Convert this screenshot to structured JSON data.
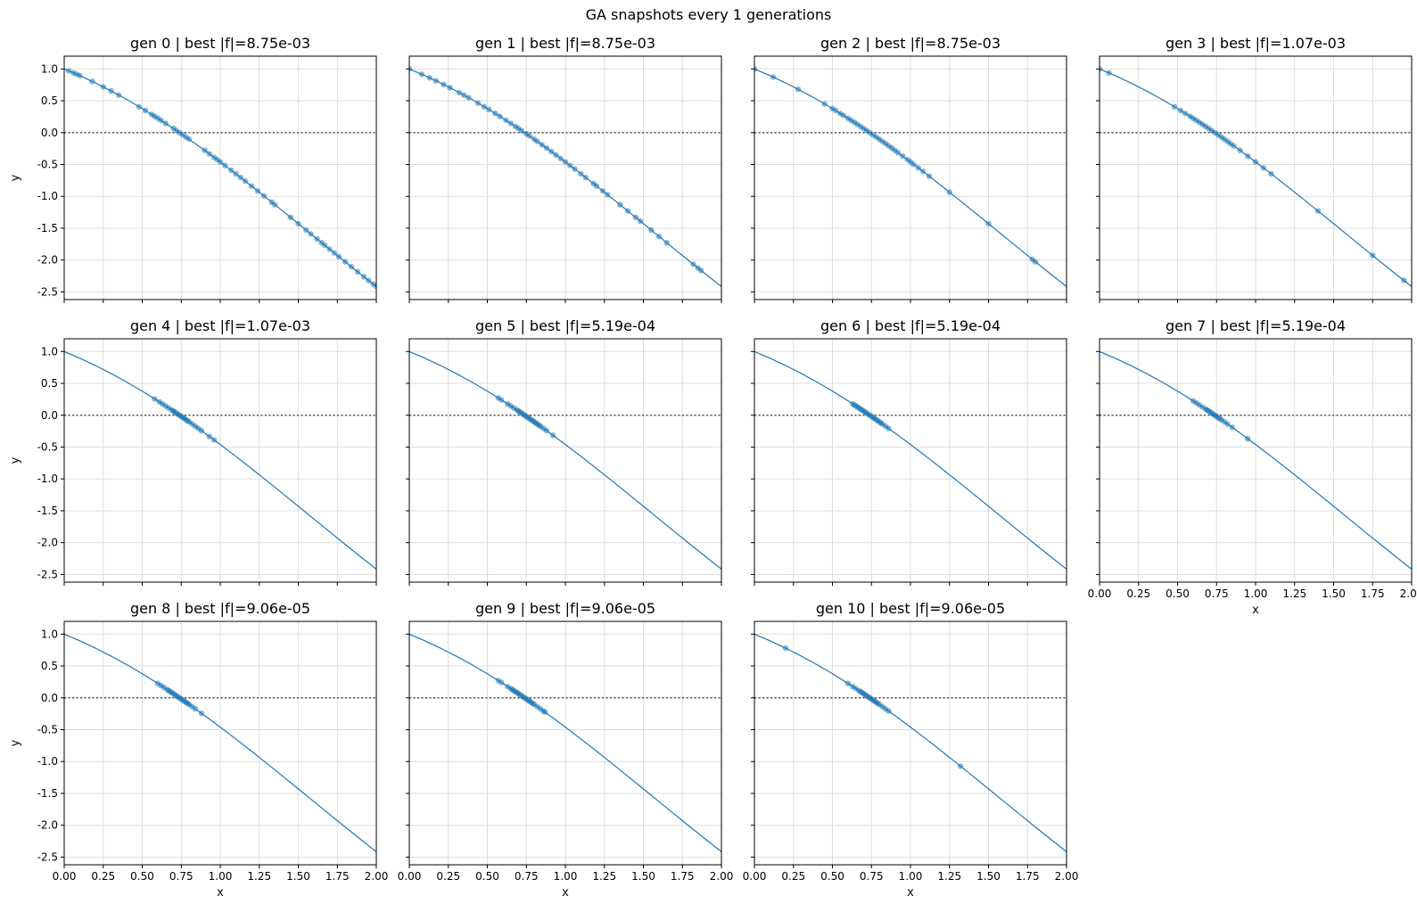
{
  "figure": {
    "suptitle": "GA snapshots every 1 generations"
  },
  "colors": {
    "curve": "#1f77b4",
    "points": "#1f77b4",
    "zero_line": "#555555",
    "grid": "#dddddd"
  },
  "chart_data": {
    "type": "scatter",
    "layout": "3x4 grid of subplots, shared x and y axes",
    "function_curve": {
      "x": [
        0.0,
        0.1,
        0.2,
        0.3,
        0.4,
        0.5,
        0.6,
        0.7,
        0.8,
        0.9,
        1.0,
        1.1,
        1.2,
        1.3,
        1.4,
        1.5,
        1.6,
        1.7,
        1.8,
        1.9,
        2.0
      ],
      "y": [
        1.0,
        0.895,
        0.78,
        0.655,
        0.521,
        0.378,
        0.225,
        0.065,
        -0.103,
        -0.278,
        -0.46,
        -0.646,
        -0.838,
        -1.033,
        -1.23,
        -1.429,
        -1.629,
        -1.829,
        -2.027,
        -2.223,
        -2.416
      ]
    },
    "zero_line_y": 0,
    "xlim": [
      0,
      2
    ],
    "ylim": [
      -2.62,
      1.2
    ],
    "xticks": [
      "0.00",
      "0.25",
      "0.50",
      "0.75",
      "1.00",
      "1.25",
      "1.50",
      "1.75",
      "2.00"
    ],
    "yticks": [
      "-2.5",
      "-2.0",
      "-1.5",
      "-1.0",
      "-0.5",
      "0.0",
      "0.5",
      "1.0"
    ],
    "xlabel": "x",
    "ylabel": "y",
    "grid": true,
    "panels": [
      {
        "title": "gen 0 | best |f|=8.75e-03",
        "points_x": [
          0.03,
          0.06,
          0.08,
          0.1,
          0.18,
          0.25,
          0.3,
          0.35,
          0.48,
          0.52,
          0.56,
          0.58,
          0.6,
          0.62,
          0.65,
          0.7,
          0.72,
          0.74,
          0.76,
          0.78,
          0.8,
          0.9,
          0.93,
          0.96,
          0.98,
          1.0,
          1.03,
          1.07,
          1.1,
          1.13,
          1.16,
          1.2,
          1.24,
          1.28,
          1.33,
          1.35,
          1.45,
          1.5,
          1.55,
          1.58,
          1.62,
          1.65,
          1.67,
          1.7,
          1.73,
          1.76,
          1.8,
          1.84,
          1.88,
          1.92,
          1.95,
          1.98,
          2.0
        ]
      },
      {
        "title": "gen 1 | best |f|=8.75e-03",
        "points_x": [
          0.0,
          0.08,
          0.13,
          0.17,
          0.22,
          0.26,
          0.32,
          0.35,
          0.38,
          0.44,
          0.48,
          0.51,
          0.55,
          0.58,
          0.62,
          0.65,
          0.68,
          0.7,
          0.72,
          0.75,
          0.77,
          0.8,
          0.82,
          0.85,
          0.88,
          0.91,
          0.94,
          0.97,
          1.0,
          1.03,
          1.06,
          1.1,
          1.13,
          1.18,
          1.2,
          1.24,
          1.27,
          1.35,
          1.4,
          1.45,
          1.48,
          1.55,
          1.6,
          1.65,
          1.82,
          1.85,
          1.87
        ]
      },
      {
        "title": "gen 2 | best |f|=8.75e-03",
        "points_x": [
          0.0,
          0.12,
          0.28,
          0.45,
          0.5,
          0.52,
          0.55,
          0.57,
          0.6,
          0.62,
          0.64,
          0.66,
          0.68,
          0.7,
          0.72,
          0.74,
          0.76,
          0.78,
          0.8,
          0.82,
          0.84,
          0.86,
          0.88,
          0.9,
          0.92,
          0.95,
          0.98,
          1.0,
          1.02,
          1.05,
          1.08,
          1.12,
          1.25,
          1.5,
          1.78,
          1.8
        ]
      },
      {
        "title": "gen 3 | best |f|=1.07e-03",
        "points_x": [
          0.0,
          0.06,
          0.48,
          0.52,
          0.55,
          0.58,
          0.6,
          0.62,
          0.64,
          0.66,
          0.68,
          0.7,
          0.72,
          0.74,
          0.76,
          0.78,
          0.8,
          0.82,
          0.84,
          0.86,
          0.9,
          0.95,
          1.0,
          1.05,
          1.1,
          1.4,
          1.75,
          1.95
        ]
      },
      {
        "title": "gen 4 | best |f|=1.07e-03",
        "points_x": [
          0.58,
          0.61,
          0.63,
          0.65,
          0.67,
          0.69,
          0.7,
          0.71,
          0.72,
          0.73,
          0.74,
          0.75,
          0.76,
          0.77,
          0.78,
          0.79,
          0.8,
          0.82,
          0.84,
          0.86,
          0.88,
          0.93,
          0.96
        ]
      },
      {
        "title": "gen 5 | best |f|=5.19e-04",
        "points_x": [
          0.57,
          0.59,
          0.63,
          0.65,
          0.67,
          0.69,
          0.7,
          0.71,
          0.72,
          0.73,
          0.74,
          0.75,
          0.76,
          0.77,
          0.78,
          0.79,
          0.8,
          0.81,
          0.82,
          0.83,
          0.84,
          0.86,
          0.88,
          0.92
        ]
      },
      {
        "title": "gen 6 | best |f|=5.19e-04",
        "points_x": [
          0.63,
          0.64,
          0.65,
          0.66,
          0.67,
          0.68,
          0.69,
          0.7,
          0.71,
          0.72,
          0.73,
          0.74,
          0.75,
          0.76,
          0.77,
          0.78,
          0.79,
          0.8,
          0.81,
          0.82,
          0.84,
          0.86
        ]
      },
      {
        "title": "gen 7 | best |f|=5.19e-04",
        "points_x": [
          0.6,
          0.62,
          0.64,
          0.66,
          0.68,
          0.69,
          0.7,
          0.71,
          0.72,
          0.73,
          0.74,
          0.75,
          0.76,
          0.77,
          0.78,
          0.8,
          0.82,
          0.85,
          0.95
        ]
      },
      {
        "title": "gen 8 | best |f|=9.06e-05",
        "points_x": [
          0.6,
          0.62,
          0.64,
          0.66,
          0.67,
          0.68,
          0.69,
          0.7,
          0.71,
          0.72,
          0.73,
          0.74,
          0.75,
          0.76,
          0.77,
          0.78,
          0.79,
          0.8,
          0.82,
          0.84,
          0.88
        ]
      },
      {
        "title": "gen 9 | best |f|=9.06e-05",
        "points_x": [
          0.57,
          0.59,
          0.63,
          0.65,
          0.66,
          0.67,
          0.68,
          0.69,
          0.7,
          0.71,
          0.72,
          0.73,
          0.74,
          0.75,
          0.76,
          0.77,
          0.78,
          0.79,
          0.8,
          0.82,
          0.84,
          0.86,
          0.87
        ]
      },
      {
        "title": "gen 10 | best |f|=9.06e-05",
        "points_x": [
          0.2,
          0.6,
          0.63,
          0.65,
          0.67,
          0.68,
          0.69,
          0.7,
          0.71,
          0.72,
          0.73,
          0.74,
          0.75,
          0.76,
          0.77,
          0.78,
          0.79,
          0.8,
          0.82,
          0.84,
          0.86,
          1.32
        ]
      }
    ]
  }
}
